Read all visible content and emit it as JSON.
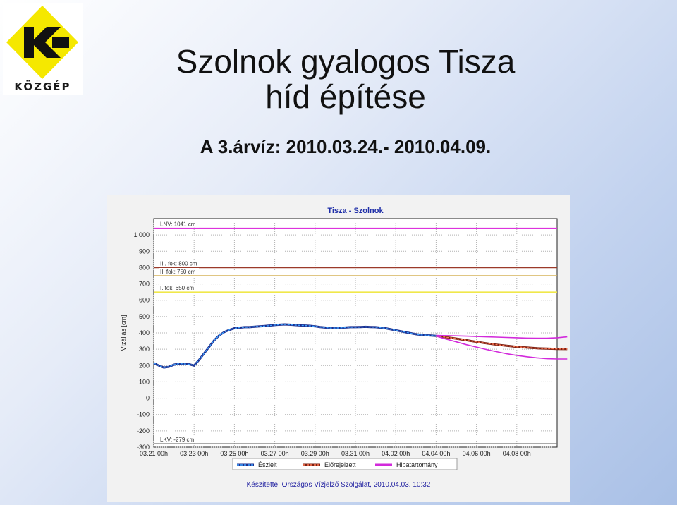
{
  "logo": {
    "text": "KÖZGÉP",
    "colors": {
      "yellow": "#f5e800",
      "black": "#111111"
    }
  },
  "slide": {
    "title_line1": "Szolnok gyalogos Tisza",
    "title_line2": "híd építése",
    "subtitle": "A 3.árvíz: 2010.03.24.- 2010.04.09."
  },
  "chart_data": {
    "type": "line",
    "title": "Tisza - Szolnok",
    "ylabel": "Vízállás [cm]",
    "xlabel": "",
    "ylim": [
      -300,
      1100
    ],
    "y_ticks": [
      "1 000",
      "900",
      "800",
      "700",
      "600",
      "500",
      "400",
      "300",
      "200",
      "100",
      "0",
      "-100",
      "-200",
      "-300"
    ],
    "y_tick_values": [
      1000,
      900,
      800,
      700,
      600,
      500,
      400,
      300,
      200,
      100,
      0,
      -100,
      -200,
      -300
    ],
    "x_ticks": [
      "03.21 00h",
      "03.23 00h",
      "03.25 00h",
      "03.27 00h",
      "03.29 00h",
      "03.31 00h",
      "04.02 00h",
      "04.04 00h",
      "04.06 00h",
      "04.08 00h"
    ],
    "x_range_days": [
      0,
      20
    ],
    "grid": true,
    "legend_position": "bottom",
    "reference_lines": [
      {
        "label": "LNV: 1041 cm",
        "value": 1041,
        "color": "#dd33dd"
      },
      {
        "label": "III. fok: 800 cm",
        "value": 800,
        "color": "#9b3a2a"
      },
      {
        "label": "II. fok: 750 cm",
        "value": 750,
        "color": "#d6b35a"
      },
      {
        "label": "I. fok: 650 cm",
        "value": 650,
        "color": "#f0e84a"
      },
      {
        "label": "LKV: -279 cm",
        "value": -279,
        "color": "#777777"
      }
    ],
    "series": [
      {
        "name": "Észlelt",
        "color": "#1e6fd6",
        "x": [
          0,
          0.25,
          0.5,
          0.75,
          1.0,
          1.25,
          1.5,
          1.75,
          2.0,
          2.25,
          2.5,
          2.75,
          3.0,
          3.25,
          3.5,
          3.75,
          4.0,
          4.25,
          4.5,
          4.75,
          5.0,
          5.25,
          5.5,
          5.75,
          6.0,
          6.25,
          6.5,
          6.75,
          7.0,
          7.25,
          7.5,
          7.75,
          8.0,
          8.25,
          8.5,
          8.75,
          9.0,
          9.25,
          9.5,
          9.75,
          10.0,
          10.25,
          10.5,
          10.75,
          11.0,
          11.25,
          11.5,
          11.75,
          12.0,
          12.25,
          12.5,
          12.75,
          13.0,
          13.25,
          13.5,
          13.75,
          14.0
        ],
        "values": [
          215,
          200,
          188,
          192,
          205,
          212,
          210,
          208,
          200,
          235,
          275,
          315,
          355,
          385,
          405,
          418,
          428,
          432,
          435,
          435,
          438,
          440,
          442,
          445,
          448,
          450,
          452,
          450,
          448,
          446,
          445,
          443,
          440,
          436,
          433,
          430,
          430,
          431,
          433,
          435,
          435,
          436,
          437,
          436,
          435,
          432,
          428,
          422,
          416,
          410,
          404,
          398,
          392,
          388,
          386,
          384,
          382
        ]
      },
      {
        "name": "Előrejelzett",
        "color": "#d24a2a",
        "x": [
          14.0,
          14.5,
          15.0,
          15.5,
          16.0,
          16.5,
          17.0,
          17.5,
          18.0,
          18.5,
          19.0,
          19.5,
          20.0,
          20.5
        ],
        "values": [
          382,
          373,
          365,
          355,
          345,
          336,
          328,
          321,
          315,
          310,
          306,
          304,
          302,
          301
        ]
      },
      {
        "name": "Hibatartomány",
        "color": "#d22adb",
        "x": [
          14.0,
          14.5,
          15.0,
          15.5,
          16.0,
          16.5,
          17.0,
          17.5,
          18.0,
          18.5,
          19.0,
          19.5,
          20.0,
          20.5
        ],
        "values": [
          385,
          383,
          382,
          380,
          378,
          376,
          374,
          372,
          370,
          368,
          367,
          367,
          370,
          376
        ]
      },
      {
        "name": "",
        "color": "#d22adb",
        "x": [
          14.0,
          14.5,
          15.0,
          15.5,
          16.0,
          16.5,
          17.0,
          17.5,
          18.0,
          18.5,
          19.0,
          19.5,
          20.0,
          20.5
        ],
        "values": [
          380,
          362,
          345,
          328,
          313,
          298,
          285,
          272,
          262,
          254,
          247,
          242,
          240,
          240
        ]
      }
    ],
    "footer": "Készítette: Országos Vízjelző Szolgálat, 2010.04.03. 10:32"
  }
}
